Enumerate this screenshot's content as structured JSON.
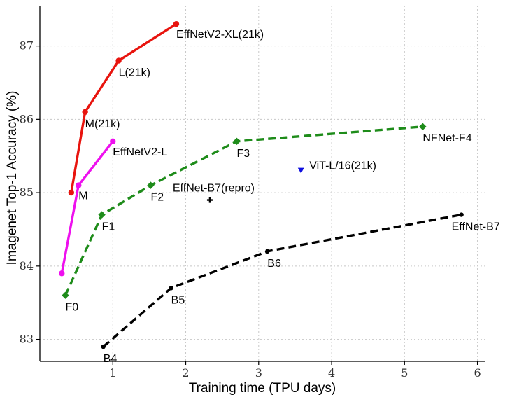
{
  "chart_data": {
    "type": "line",
    "title": "",
    "xlabel": "Training time (TPU days)",
    "ylabel": "Imagenet Top-1 Accuracy (%)",
    "xlim": [
      0,
      6.1
    ],
    "ylim": [
      82.7,
      87.55
    ],
    "xticks": [
      1,
      2,
      3,
      4,
      5,
      6
    ],
    "yticks": [
      83,
      84,
      85,
      86,
      87
    ],
    "grid": true,
    "series": [
      {
        "name": "EffNetV2 (21k)",
        "color": "#e8140e",
        "dash": "solid",
        "marker": "circle",
        "points": [
          {
            "x": 0.43,
            "y": 85.0,
            "label": ""
          },
          {
            "x": 0.62,
            "y": 86.1,
            "label": "M(21k)"
          },
          {
            "x": 1.08,
            "y": 86.8,
            "label": "L(21k)"
          },
          {
            "x": 1.87,
            "y": 87.3,
            "label": "EffNetV2-XL(21k)"
          }
        ]
      },
      {
        "name": "EffNetV2",
        "color": "#ee10ee",
        "dash": "solid",
        "marker": "circle",
        "points": [
          {
            "x": 0.3,
            "y": 83.9,
            "label": ""
          },
          {
            "x": 0.53,
            "y": 85.1,
            "label": "M"
          },
          {
            "x": 1.0,
            "y": 85.7,
            "label": "EffNetV2-L"
          }
        ]
      },
      {
        "name": "NFNet",
        "color": "#1e8c1a",
        "dash": "dashed",
        "marker": "diamond",
        "points": [
          {
            "x": 0.35,
            "y": 83.6,
            "label": "F0"
          },
          {
            "x": 0.85,
            "y": 84.7,
            "label": "F1"
          },
          {
            "x": 1.52,
            "y": 85.1,
            "label": "F2"
          },
          {
            "x": 2.7,
            "y": 85.7,
            "label": "F3"
          },
          {
            "x": 5.25,
            "y": 85.9,
            "label": "NFNet-F4"
          }
        ]
      },
      {
        "name": "EffNet",
        "color": "#000000",
        "dash": "dashed",
        "marker": "point",
        "points": [
          {
            "x": 0.87,
            "y": 82.9,
            "label": "B4"
          },
          {
            "x": 1.8,
            "y": 83.7,
            "label": "B5"
          },
          {
            "x": 3.12,
            "y": 84.2,
            "label": "B6"
          },
          {
            "x": 5.78,
            "y": 84.7,
            "label": "EffNet-B7"
          }
        ]
      },
      {
        "name": "EffNet-B7(repro)",
        "color": "#000000",
        "dash": "none",
        "marker": "plus",
        "points": [
          {
            "x": 2.33,
            "y": 84.9,
            "label": "EffNet-B7(repro)"
          }
        ]
      },
      {
        "name": "ViT-L/16(21k)",
        "color": "#1010e0",
        "dash": "none",
        "marker": "triangle-down",
        "points": [
          {
            "x": 3.58,
            "y": 85.3,
            "label": "ViT-L/16(21k)"
          }
        ]
      }
    ]
  }
}
